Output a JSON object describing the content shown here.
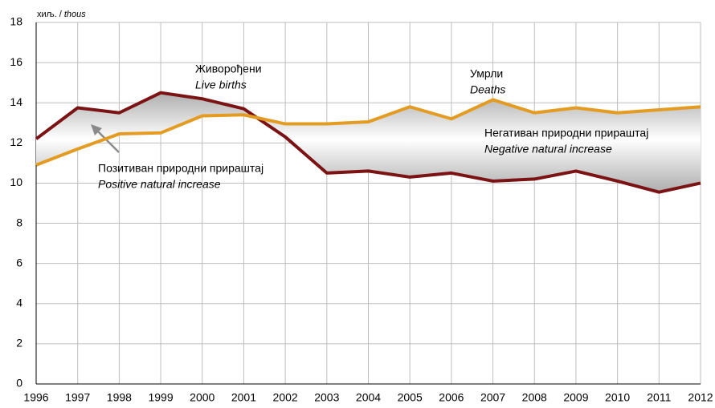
{
  "chart_data": {
    "type": "line",
    "unit": "хиљ. /",
    "unit_en": "thous",
    "x": [
      1996,
      1997,
      1998,
      1999,
      2000,
      2001,
      2002,
      2003,
      2004,
      2005,
      2006,
      2007,
      2008,
      2009,
      2010,
      2011,
      2012
    ],
    "series": [
      {
        "name": "Живорођени",
        "name_en": "Live births",
        "color": "#7b1214",
        "values": [
          12.2,
          13.75,
          13.5,
          14.5,
          14.2,
          13.7,
          12.3,
          10.5,
          10.6,
          10.3,
          10.5,
          10.1,
          10.2,
          10.6,
          10.1,
          9.55,
          10.0
        ]
      },
      {
        "name": "Умрли",
        "name_en": "Deaths",
        "color": "#e49b22",
        "values": [
          10.9,
          11.7,
          12.45,
          12.5,
          13.35,
          13.4,
          12.95,
          12.95,
          13.05,
          13.8,
          13.2,
          14.15,
          13.5,
          13.75,
          13.5,
          13.65,
          13.8
        ]
      }
    ],
    "annotations": [
      {
        "text": "Негативан природни прираштај",
        "text_en": "Negative natural increase"
      },
      {
        "text": "Позитиван природни прираштај",
        "text_en": "Positive natural increase"
      }
    ],
    "xlim": [
      1996,
      2012
    ],
    "xticks": [
      1996,
      1997,
      1998,
      1999,
      2000,
      2001,
      2002,
      2003,
      2004,
      2005,
      2006,
      2007,
      2008,
      2009,
      2010,
      2011,
      2012
    ],
    "ylim": [
      0,
      18
    ],
    "yticks": [
      0,
      2,
      4,
      6,
      8,
      10,
      12,
      14,
      16,
      18
    ],
    "grid": true
  }
}
